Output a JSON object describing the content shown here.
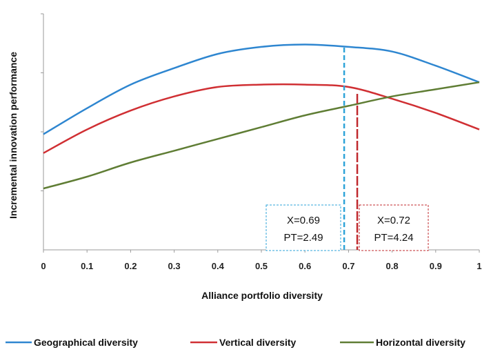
{
  "chart_data": {
    "type": "line",
    "xlabel": "Alliance portfolio diversity",
    "ylabel": "Incremental innovation performance",
    "x_ticks": [
      "0",
      "0.1",
      "0.2",
      "0.3",
      "0.4",
      "0.5",
      "0.6",
      "0.7",
      "0.8",
      "0.9",
      "1"
    ],
    "xlim": [
      0,
      1
    ],
    "ylim": [
      0,
      1
    ],
    "grid": false,
    "legend_position": "bottom",
    "x": [
      0,
      0.1,
      0.2,
      0.3,
      0.4,
      0.5,
      0.6,
      0.7,
      0.8,
      0.9,
      1.0
    ],
    "series": [
      {
        "name": "Geographical diversity",
        "color": "#2e86d0",
        "values": [
          0.49,
          0.6,
          0.7,
          0.77,
          0.83,
          0.86,
          0.87,
          0.86,
          0.84,
          0.78,
          0.71
        ]
      },
      {
        "name": "Vertical diversity",
        "color": "#d02f33",
        "values": [
          0.41,
          0.51,
          0.59,
          0.65,
          0.69,
          0.7,
          0.7,
          0.69,
          0.64,
          0.58,
          0.51
        ]
      },
      {
        "name": "Horizontal diversity",
        "color": "#5f7d34",
        "values": [
          0.26,
          0.31,
          0.37,
          0.42,
          0.47,
          0.52,
          0.57,
          0.61,
          0.65,
          0.68,
          0.71
        ]
      }
    ],
    "annotations": [
      {
        "line1": "X=0.69",
        "line2": "PT=2.49",
        "x": 0.69,
        "color": "#2ea3d8"
      },
      {
        "line1": "X=0.72",
        "line2": "PT=4.24",
        "x": 0.72,
        "color": "#c0282d"
      }
    ]
  }
}
